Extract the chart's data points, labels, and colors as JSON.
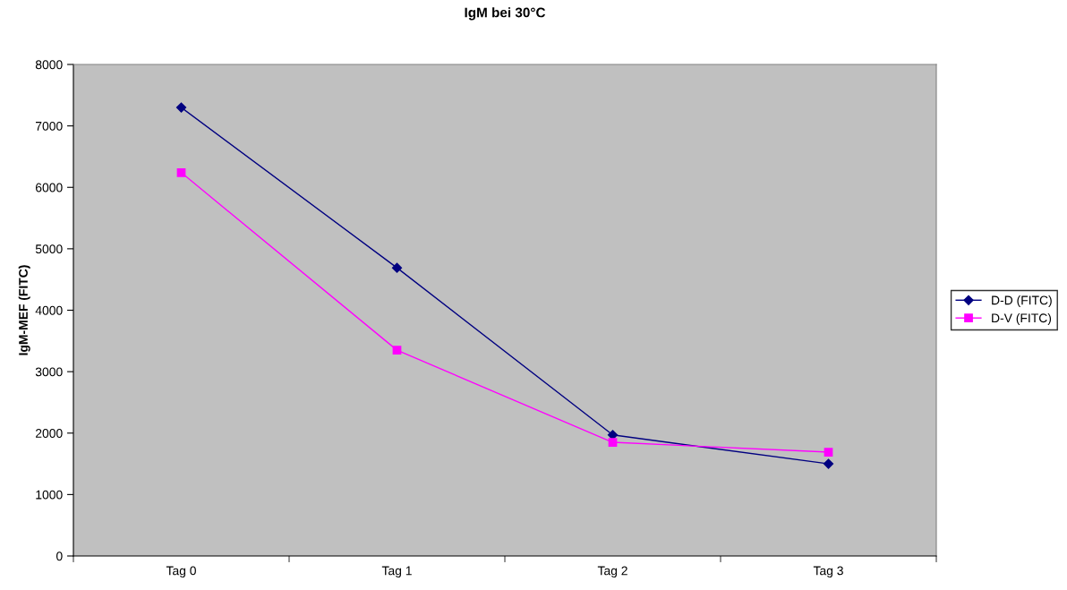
{
  "chart_data": {
    "type": "line",
    "title": "IgM bei 30°C",
    "ylabel": "IgM-MEF (FITC)",
    "categories": [
      "Tag 0",
      "Tag 1",
      "Tag 2",
      "Tag 3"
    ],
    "series": [
      {
        "name": "D-D (FITC)",
        "color": "#000080",
        "marker": "diamond",
        "values": [
          7300,
          4690,
          1970,
          1500
        ]
      },
      {
        "name": "D-V (FITC)",
        "color": "#ff00ff",
        "marker": "square",
        "values": [
          6240,
          3350,
          1850,
          1690
        ]
      }
    ],
    "ylim": [
      0,
      8000
    ],
    "yticks": [
      0,
      1000,
      2000,
      3000,
      4000,
      5000,
      6000,
      7000,
      8000
    ],
    "grid": false,
    "legend": "right",
    "line_style": "solid"
  }
}
